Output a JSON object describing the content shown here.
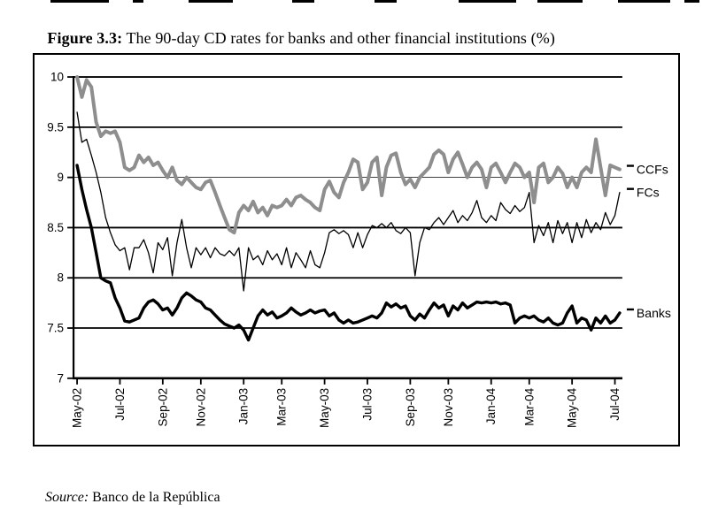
{
  "figure": {
    "label": "Figure 3.3:",
    "caption": " The 90-day CD rates for banks and other financial institutions (%)"
  },
  "source": {
    "prefix": "Source:",
    "text": " Banco de la República"
  },
  "chart_data": {
    "type": "line",
    "title": "Figure 3.3: The 90-day CD rates for banks and other financial institutions (%)",
    "xlabel": "",
    "ylabel": "",
    "ylim": [
      7,
      10
    ],
    "yticks": [
      10,
      9.5,
      9,
      8.5,
      8,
      7.5,
      7
    ],
    "ytick_labels": [
      "10",
      "9.5",
      "9",
      "8.5",
      "8",
      "7.5",
      "7"
    ],
    "thin_gridline_value": 9,
    "grid": "horizontal",
    "x_unit": "weekly observations, May 2002 - Jul 2004",
    "xtick_indices": [
      0,
      9,
      18,
      26,
      35,
      43,
      52,
      61,
      70,
      78,
      87,
      95,
      104,
      113
    ],
    "xtick_labels": [
      "May-02",
      "Jul-02",
      "Sep-02",
      "Nov-02",
      "Jan-03",
      "Mar-03",
      "May-03",
      "Jul-03",
      "Sep-03",
      "Nov-03",
      "Jan-04",
      "Mar-04",
      "May-04",
      "Jul-04"
    ],
    "legend_position": "right-of-plot",
    "legend_labels": [
      "CCFs",
      "FCs",
      "Banks"
    ],
    "series": [
      {
        "name": "CCFs",
        "color": "#8e8e8e",
        "width": 4,
        "values": [
          10,
          9.8,
          9.97,
          9.9,
          9.55,
          9.41,
          9.46,
          9.44,
          9.46,
          9.35,
          9.1,
          9.07,
          9.1,
          9.22,
          9.15,
          9.2,
          9.12,
          9.15,
          9.07,
          9,
          9.1,
          8.97,
          8.93,
          9,
          8.95,
          8.9,
          8.88,
          8.95,
          8.97,
          8.85,
          8.72,
          8.6,
          8.48,
          8.45,
          8.65,
          8.72,
          8.67,
          8.76,
          8.65,
          8.7,
          8.62,
          8.72,
          8.7,
          8.72,
          8.78,
          8.72,
          8.8,
          8.82,
          8.78,
          8.75,
          8.7,
          8.67,
          8.88,
          8.96,
          8.85,
          8.8,
          8.95,
          9.05,
          9.18,
          9.15,
          8.88,
          8.95,
          9.15,
          9.2,
          8.82,
          9.1,
          9.22,
          9.24,
          9.05,
          8.93,
          8.98,
          8.9,
          9,
          9.05,
          9.1,
          9.23,
          9.27,
          9.23,
          9.05,
          9.18,
          9.25,
          9.13,
          9,
          9.1,
          9.15,
          9.08,
          8.9,
          9.1,
          9.14,
          9.05,
          8.95,
          9.05,
          9.14,
          9.1,
          9,
          9.05,
          8.75,
          9.1,
          9.14,
          8.95,
          9,
          9.1,
          9.04,
          8.9,
          9,
          8.9,
          9.05,
          9.1,
          9.05,
          9.38,
          9.1,
          8.82,
          9.12,
          9.1,
          9.08
        ]
      },
      {
        "name": "FCs",
        "color": "#000000",
        "width": 1.3,
        "values": [
          9.65,
          9.35,
          9.38,
          9.22,
          9.05,
          8.85,
          8.6,
          8.45,
          8.33,
          8.27,
          8.3,
          8.08,
          8.3,
          8.3,
          8.38,
          8.25,
          8.05,
          8.35,
          8.28,
          8.4,
          8.02,
          8.35,
          8.58,
          8.3,
          8.1,
          8.3,
          8.23,
          8.3,
          8.2,
          8.3,
          8.24,
          8.22,
          8.27,
          8.22,
          8.3,
          7.87,
          8.3,
          8.18,
          8.22,
          8.13,
          8.27,
          8.18,
          8.24,
          8.13,
          8.3,
          8.1,
          8.25,
          8.18,
          8.1,
          8.27,
          8.13,
          8.1,
          8.25,
          8.45,
          8.48,
          8.44,
          8.47,
          8.43,
          8.3,
          8.45,
          8.3,
          8.43,
          8.52,
          8.5,
          8.54,
          8.5,
          8.55,
          8.47,
          8.44,
          8.5,
          8.45,
          8.02,
          8.35,
          8.5,
          8.48,
          8.55,
          8.6,
          8.53,
          8.6,
          8.67,
          8.55,
          8.62,
          8.57,
          8.65,
          8.77,
          8.6,
          8.55,
          8.62,
          8.57,
          8.75,
          8.68,
          8.64,
          8.72,
          8.66,
          8.7,
          8.85,
          8.35,
          8.52,
          8.42,
          8.55,
          8.35,
          8.57,
          8.44,
          8.55,
          8.35,
          8.55,
          8.4,
          8.58,
          8.45,
          8.55,
          8.48,
          8.65,
          8.53,
          8.62,
          8.85
        ]
      },
      {
        "name": "Banks",
        "color": "#000000",
        "width": 3.4,
        "values": [
          9.12,
          8.88,
          8.68,
          8.5,
          8.25,
          8,
          7.97,
          7.95,
          7.8,
          7.7,
          7.57,
          7.56,
          7.58,
          7.6,
          7.7,
          7.76,
          7.78,
          7.74,
          7.68,
          7.7,
          7.63,
          7.7,
          7.8,
          7.85,
          7.82,
          7.78,
          7.76,
          7.7,
          7.68,
          7.63,
          7.58,
          7.54,
          7.52,
          7.5,
          7.53,
          7.48,
          7.38,
          7.5,
          7.62,
          7.68,
          7.63,
          7.66,
          7.6,
          7.62,
          7.65,
          7.7,
          7.66,
          7.63,
          7.65,
          7.68,
          7.65,
          7.67,
          7.68,
          7.62,
          7.65,
          7.58,
          7.55,
          7.58,
          7.55,
          7.56,
          7.58,
          7.6,
          7.62,
          7.6,
          7.65,
          7.75,
          7.71,
          7.74,
          7.7,
          7.72,
          7.62,
          7.58,
          7.64,
          7.6,
          7.68,
          7.75,
          7.7,
          7.73,
          7.62,
          7.72,
          7.68,
          7.75,
          7.7,
          7.73,
          7.76,
          7.75,
          7.76,
          7.75,
          7.76,
          7.74,
          7.75,
          7.73,
          7.55,
          7.6,
          7.62,
          7.6,
          7.62,
          7.58,
          7.56,
          7.6,
          7.55,
          7.53,
          7.55,
          7.65,
          7.72,
          7.55,
          7.6,
          7.58,
          7.48,
          7.6,
          7.55,
          7.62,
          7.55,
          7.58,
          7.65
        ]
      }
    ],
    "top_edge_marks": [
      [
        57,
        123
      ],
      [
        150,
        162
      ],
      [
        213,
        263
      ],
      [
        330,
        355
      ],
      [
        423,
        448
      ],
      [
        518,
        583
      ],
      [
        607,
        658
      ],
      [
        698,
        757
      ],
      [
        773,
        790
      ]
    ]
  }
}
